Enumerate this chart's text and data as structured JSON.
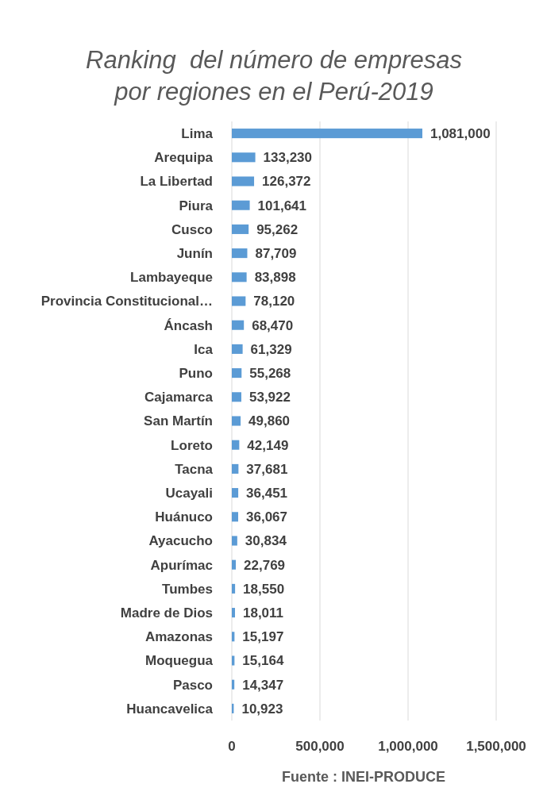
{
  "chart_data": {
    "type": "bar",
    "orientation": "horizontal",
    "title": "Ranking  del número de empresas por regiones en el Perú-2019",
    "categories": [
      "Lima",
      "Arequipa",
      "La Libertad",
      "Piura",
      "Cusco",
      "Junín",
      "Lambayeque",
      "Provincia Constitucional…",
      "Áncash",
      "Ica",
      "Puno",
      "Cajamarca",
      "San Martín",
      "Loreto",
      "Tacna",
      "Ucayali",
      "Huánuco",
      "Ayacucho",
      "Apurímac",
      "Tumbes",
      "Madre de Dios",
      "Amazonas",
      "Moquegua",
      "Pasco",
      "Huancavelica"
    ],
    "values": [
      1081000,
      133230,
      126372,
      101641,
      95262,
      87709,
      83898,
      78120,
      68470,
      61329,
      55268,
      53922,
      49860,
      42149,
      37681,
      36451,
      36067,
      30834,
      22769,
      18550,
      18011,
      15197,
      15164,
      14347,
      10923
    ],
    "value_labels": [
      "1,081,000",
      "133,230",
      "126,372",
      "101,641",
      "95,262",
      "87,709",
      "83,898",
      "78,120",
      "68,470",
      "61,329",
      "55,268",
      "53,922",
      "49,860",
      "42,149",
      "37,681",
      "36,451",
      "36,067",
      "30,834",
      "22,769",
      "18,550",
      "18,011",
      "15,197",
      "15,164",
      "14,347",
      "10,923"
    ],
    "color": "#5b9bd5",
    "xlim": [
      0,
      1500000
    ],
    "xticks": [
      0,
      {
        "value": 500000,
        "label": "500,000"
      },
      {
        "value": 1000000,
        "label": "1,000,000"
      },
      {
        "value": 1500000,
        "label": "1,500,000"
      }
    ],
    "grid": "x",
    "annotations": [
      "Fuente : INEI-PRODUCE"
    ]
  }
}
